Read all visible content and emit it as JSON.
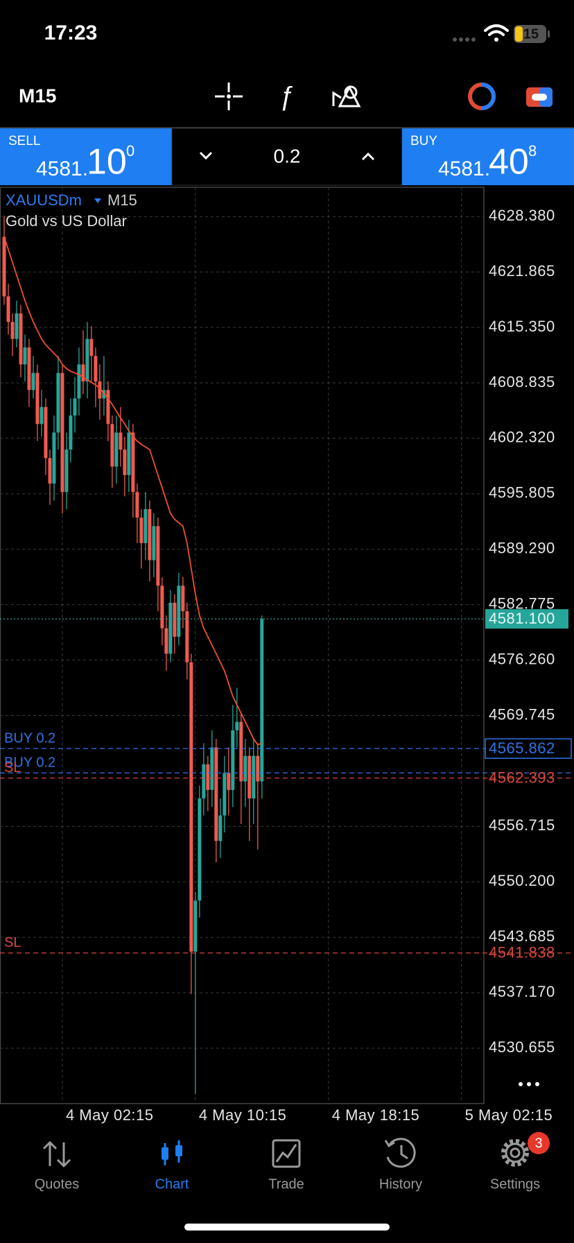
{
  "status_bar": {
    "time": "17:23",
    "battery": "15"
  },
  "toolbar": {
    "timeframe": "M15"
  },
  "trade_panel": {
    "sell": {
      "label": "SELL",
      "price_main": "4581.",
      "price_big": "10",
      "price_small": "0"
    },
    "buy": {
      "label": "BUY",
      "price_main": "4581.",
      "price_big": "40",
      "price_small": "8"
    },
    "volume": "0.2"
  },
  "chart_data": {
    "type": "candlestick",
    "symbol": "XAUUSDm",
    "timeframe": "M15",
    "description": "Gold vs US Dollar",
    "x": [
      -1.25,
      -1,
      -0.75,
      -0.5,
      -0.25,
      0,
      0.25,
      0.5,
      0.75,
      1,
      1.25,
      1.5,
      1.75,
      2,
      2.25,
      2.5,
      2.75,
      3,
      3.25,
      3.5,
      3.75,
      4,
      4.25,
      4.5,
      4.75,
      5,
      5.25,
      5.5,
      5.75,
      6,
      6.25,
      6.5,
      6.75,
      7,
      7.25,
      7.5,
      7.75,
      8,
      8.25,
      8.5,
      8.75,
      9,
      9.25,
      9.5,
      9.75,
      10,
      10.25,
      10.5,
      10.75,
      11,
      11.25,
      11.5,
      11.75,
      12,
      12.25,
      12.5,
      12.75,
      13,
      13.25,
      13.5,
      13.75,
      14,
      14.25
    ],
    "open": [
      4626,
      4619,
      4616,
      4614,
      4617,
      4611,
      4613,
      4608,
      4610,
      4604,
      4606,
      4600,
      4597,
      4603,
      4610,
      4596,
      4601,
      4605,
      4607,
      4611,
      4609,
      4614,
      4612,
      4609,
      4607,
      4608,
      4604,
      4599,
      4603,
      4601,
      4598,
      4603,
      4596,
      4593,
      4590,
      4594,
      4588,
      4592,
      4585,
      4580,
      4577,
      4583,
      4579,
      4585,
      4582,
      4576,
      4542,
      4548,
      4560,
      4564,
      4561,
      4566,
      4555,
      4558,
      4563,
      4561,
      4568,
      4569,
      4562,
      4565,
      4560,
      4565,
      4562
    ],
    "high": [
      4628.5,
      4620.5,
      4617,
      4618.5,
      4618,
      4614.5,
      4614,
      4612,
      4611,
      4608,
      4607,
      4601,
      4605,
      4612,
      4611,
      4603,
      4607,
      4609.5,
      4613,
      4615,
      4616,
      4615.5,
      4613,
      4611,
      4612,
      4609,
      4605,
      4605,
      4606,
      4602.5,
      4604.5,
      4604,
      4597,
      4594,
      4596,
      4595,
      4593.5,
      4593,
      4586,
      4581.5,
      4584.5,
      4584,
      4586.5,
      4586,
      4583,
      4577,
      4549,
      4561.5,
      4566.5,
      4565,
      4568,
      4567,
      4560,
      4565,
      4566,
      4571,
      4573,
      4570,
      4567,
      4566,
      4567,
      4566.5,
      4581.5
    ],
    "low": [
      4618,
      4614.5,
      4612,
      4613,
      4609.5,
      4609,
      4606,
      4607,
      4602,
      4602.5,
      4598,
      4594.5,
      4595,
      4601,
      4593.5,
      4594,
      4599.5,
      4603,
      4605,
      4607.5,
      4607,
      4609,
      4606,
      4604.5,
      4605,
      4602,
      4596.5,
      4597,
      4599,
      4595.5,
      4596,
      4593,
      4590,
      4587,
      4588,
      4585.5,
      4586,
      4582,
      4578,
      4575,
      4576,
      4577,
      4578,
      4580,
      4574,
      4537,
      4525.3,
      4546,
      4558,
      4558.5,
      4559,
      4552.5,
      4553,
      4556,
      4558,
      4559,
      4566,
      4557,
      4559,
      4555,
      4557,
      4554,
      4560
    ],
    "close": [
      4619,
      4616,
      4614,
      4617,
      4611,
      4613,
      4608,
      4610,
      4604,
      4606,
      4600,
      4597,
      4603,
      4610,
      4596,
      4601,
      4605,
      4607,
      4611,
      4609,
      4614,
      4612,
      4609,
      4607,
      4608,
      4604,
      4599,
      4603,
      4601,
      4598,
      4603,
      4596,
      4593,
      4590,
      4594,
      4588,
      4592,
      4585,
      4580,
      4577,
      4583,
      4579,
      4585,
      4582,
      4576,
      4542,
      4548,
      4560,
      4564,
      4561,
      4566,
      4555,
      4558,
      4563,
      4561,
      4568,
      4569,
      4562,
      4565,
      4560,
      4565,
      4562,
      4581.1
    ],
    "up_color": "#26a69a",
    "down_color": "#ef5b50",
    "moving_average": {
      "color": "#f0502e",
      "values": [
        4626,
        4624.5,
        4623,
        4621.5,
        4620,
        4618.5,
        4617.2,
        4616,
        4615,
        4614,
        4613.3,
        4612.8,
        4612.3,
        4611.8,
        4611,
        4610.5,
        4610.2,
        4610,
        4609.8,
        4609.5,
        4609.2,
        4608.9,
        4608.6,
        4608.2,
        4607.6,
        4607,
        4606.3,
        4605.5,
        4604.7,
        4604,
        4603.2,
        4602.5,
        4602,
        4601.6,
        4601.3,
        4601,
        4599.5,
        4598,
        4596.5,
        4595,
        4593.5,
        4592.8,
        4592.4,
        4592,
        4590,
        4587,
        4584,
        4581.5,
        4580,
        4579,
        4578,
        4577,
        4576,
        4575,
        4573.5,
        4572,
        4571,
        4570,
        4569,
        4568,
        4567,
        4566.3,
        4566.5
      ]
    },
    "xlim": [
      -1.5,
      27.6
    ],
    "ylim": [
      4524.14,
      4631.82
    ],
    "xticks": [
      {
        "value": 2.25,
        "label": "4 May 02:15"
      },
      {
        "value": 10.25,
        "label": "4 May 10:15"
      },
      {
        "value": 18.25,
        "label": "4 May 18:15"
      },
      {
        "value": 26.25,
        "label": "5 May 02:15"
      }
    ],
    "yticks": [
      {
        "value": 4628.38,
        "label": "4628.380"
      },
      4621.865,
      {
        "value": 4615.35,
        "label": "4615.350"
      },
      4608.835,
      {
        "value": 4602.32,
        "label": "4602.320"
      },
      4595.805,
      {
        "value": 4589.29,
        "label": "4589.290"
      },
      4582.775,
      {
        "value": 4576.26,
        "label": "4576.260"
      },
      4569.745,
      4556.715,
      {
        "value": 4550.2,
        "label": "4550.200"
      },
      4543.685,
      {
        "value": 4537.17,
        "label": "4537.170"
      },
      4530.655
    ],
    "grid": true,
    "bid_line": {
      "value": 4581.1,
      "label": "4581.100",
      "color": "#26a69a"
    },
    "levels": [
      {
        "label": "BUY 0.2",
        "value": 4565.862,
        "color": "#2f74e8",
        "show_price": true,
        "boxed": true
      },
      {
        "label": "BUY 0.2",
        "value": 4563.0,
        "color": "#2f74e8",
        "show_price": false,
        "boxed": false
      },
      {
        "label": "SL",
        "value": 4562.393,
        "color": "#d7473c",
        "show_price": true,
        "boxed": false
      },
      {
        "label": "SL",
        "value": 4541.838,
        "color": "#d7473c",
        "show_price": true,
        "boxed": false
      }
    ]
  },
  "tab_bar": {
    "tabs": [
      "Quotes",
      "Chart",
      "Trade",
      "History",
      "Settings"
    ],
    "active": 1,
    "settings_badge": "3"
  }
}
